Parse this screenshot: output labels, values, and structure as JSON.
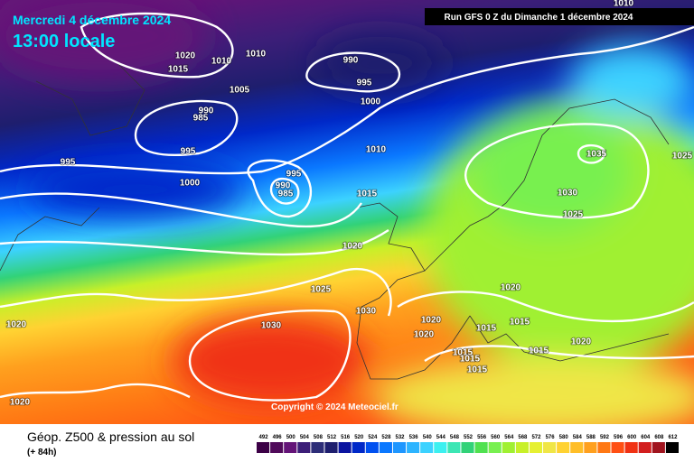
{
  "header": {
    "date": "Mercredi 4 décembre 2024",
    "time": "13:00 locale",
    "run": "Run GFS 0 Z du Dimanche 1 décembre 2024"
  },
  "copyright": "Copyright © 2024 Meteociel.fr",
  "footer": {
    "title": "Géop. Z500 & pression au sol",
    "lead": "(+ 84h)"
  },
  "scale": {
    "values": [
      492,
      496,
      500,
      504,
      508,
      512,
      516,
      520,
      524,
      528,
      532,
      536,
      540,
      544,
      548,
      552,
      556,
      560,
      564,
      568,
      572,
      576,
      580,
      584,
      588,
      592,
      596,
      600,
      604,
      608,
      612
    ],
    "colors": [
      "#3c0046",
      "#500a5a",
      "#641478",
      "#3c1e78",
      "#2d2d78",
      "#1e1e6e",
      "#0a14a0",
      "#0028c8",
      "#0050f0",
      "#0a78ff",
      "#1e96ff",
      "#2db4ff",
      "#3cd2ff",
      "#3cf0f0",
      "#3ce6b4",
      "#32d278",
      "#50e150",
      "#78f050",
      "#a0f032",
      "#c8f028",
      "#e6f032",
      "#f0e646",
      "#ffd232",
      "#ffbe28",
      "#ffa01e",
      "#ff7814",
      "#ff5014",
      "#f03214",
      "#d21e1e",
      "#a0141e",
      "#000000"
    ]
  },
  "isobar_labels": [
    1010,
    1020,
    1015,
    1010,
    1010,
    990,
    1005,
    995,
    1000,
    990,
    985,
    995,
    995,
    1010,
    995,
    1000,
    990,
    985,
    1015,
    1020,
    1035,
    1030,
    1025,
    1025,
    1025,
    1020,
    1030,
    1020,
    1015,
    1015,
    1020,
    1020,
    1030,
    1015,
    1015,
    1015,
    1015,
    1020,
    1020
  ]
}
